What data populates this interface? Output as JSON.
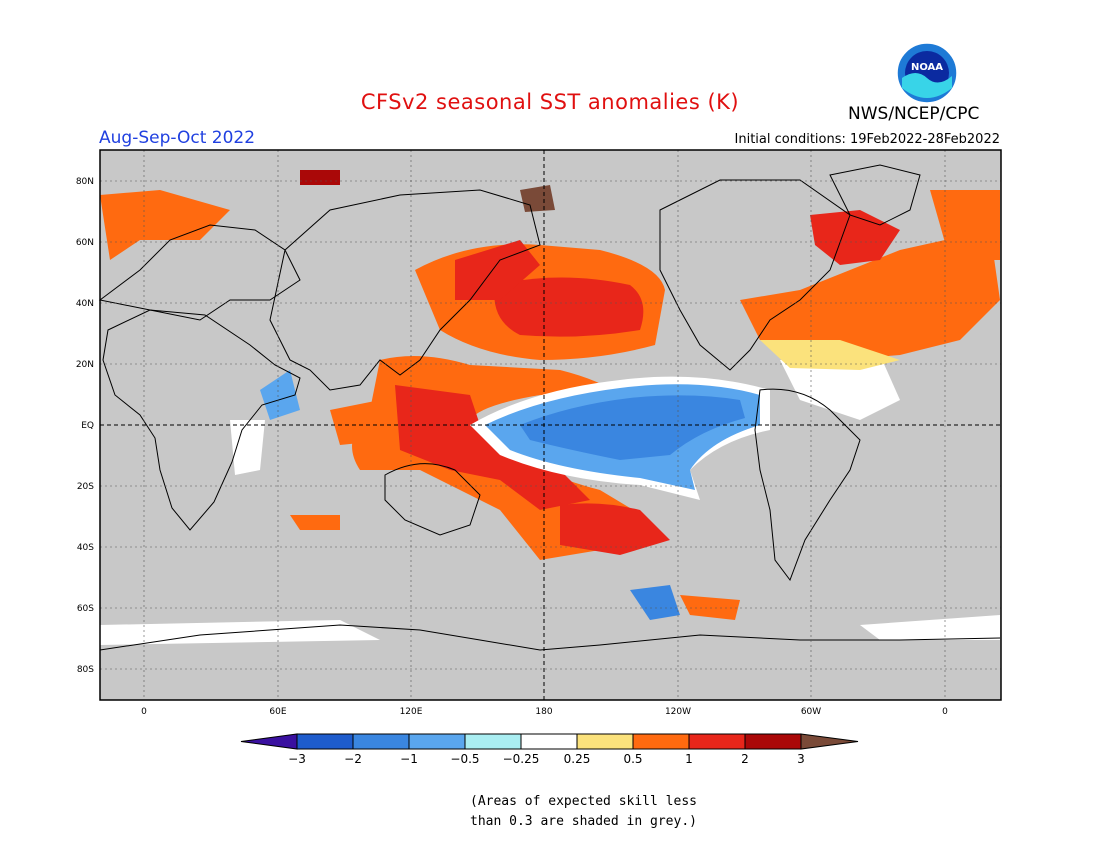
{
  "header": {
    "title": "CFSv2 seasonal SST anomalies (K)",
    "season": "Aug-Sep-Oct 2022",
    "initial_conditions": "Initial conditions: 19Feb2022-28Feb2022",
    "agency": "NWS/NCEP/CPC",
    "logo_text": "NOAA"
  },
  "map": {
    "lat_labels": [
      "80N",
      "60N",
      "40N",
      "20N",
      "EQ",
      "20S",
      "40S",
      "60S",
      "80S"
    ],
    "lon_labels": [
      "0",
      "60E",
      "120E",
      "180",
      "120W",
      "60W",
      "0"
    ],
    "land_color": "#c8c8c8",
    "grid": true
  },
  "colorbar": {
    "labels": [
      "-3",
      "-2",
      "-1",
      "-0.5",
      "-0.25",
      "0.25",
      "0.5",
      "1",
      "2",
      "3"
    ],
    "colors": [
      "#3a10a0",
      "#1e5ccc",
      "#3a86e0",
      "#5aa6ee",
      "#aaeef2",
      "#ffffff",
      "#fbe27c",
      "#ff6a10",
      "#e8261a",
      "#aa0808",
      "#7a4a38"
    ]
  },
  "note": {
    "line1": "(Areas of expected skill less",
    "line2": "than 0.3 are shaded in grey.)"
  }
}
